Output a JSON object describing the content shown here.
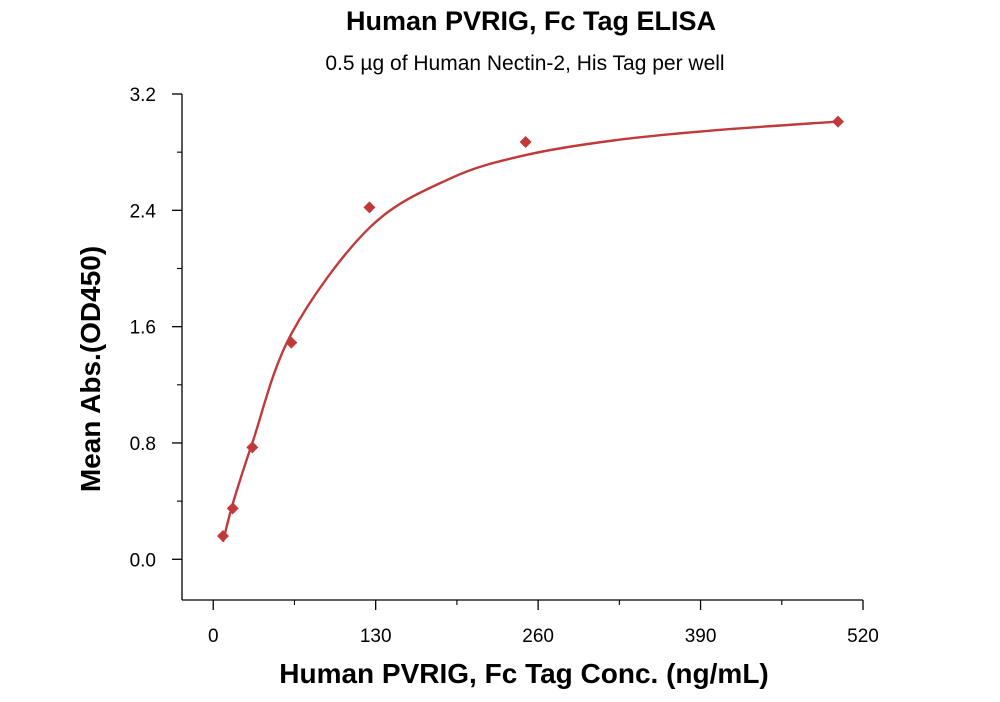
{
  "chart_data": {
    "type": "scatter",
    "title": "Human PVRIG, Fc Tag ELISA",
    "subtitle": "0.5 µg of Human Nectin-2, His Tag per well",
    "xlabel": "Human PVRIG, Fc Tag Conc. (ng/mL)",
    "ylabel": "Mean Abs.(OD450)",
    "xlim": [
      -25,
      520
    ],
    "ylim": [
      -0.28,
      3.2
    ],
    "xticks": [
      0,
      130,
      260,
      390,
      520
    ],
    "xtick_labels": [
      "0",
      "130",
      "260",
      "390",
      "520"
    ],
    "yticks": [
      0.0,
      0.8,
      1.6,
      2.4,
      3.2
    ],
    "ytick_labels": [
      "0.0",
      "0.8",
      "1.6",
      "2.4",
      "3.2"
    ],
    "grid": false,
    "legend": "none",
    "color": "#C0393B",
    "series": [
      {
        "marker": "diamond",
        "x": [
          7.8,
          15.6,
          31.3,
          62.5,
          125,
          250,
          500
        ],
        "y": [
          0.16,
          0.35,
          0.77,
          1.49,
          2.42,
          2.87,
          3.01
        ]
      }
    ],
    "fit_curve": {
      "x": [
        7.8,
        15.6,
        31.3,
        62.5,
        125,
        190,
        250,
        320,
        400,
        500
      ],
      "y": [
        0.12,
        0.38,
        0.8,
        1.55,
        2.28,
        2.62,
        2.78,
        2.88,
        2.95,
        3.01
      ]
    }
  }
}
